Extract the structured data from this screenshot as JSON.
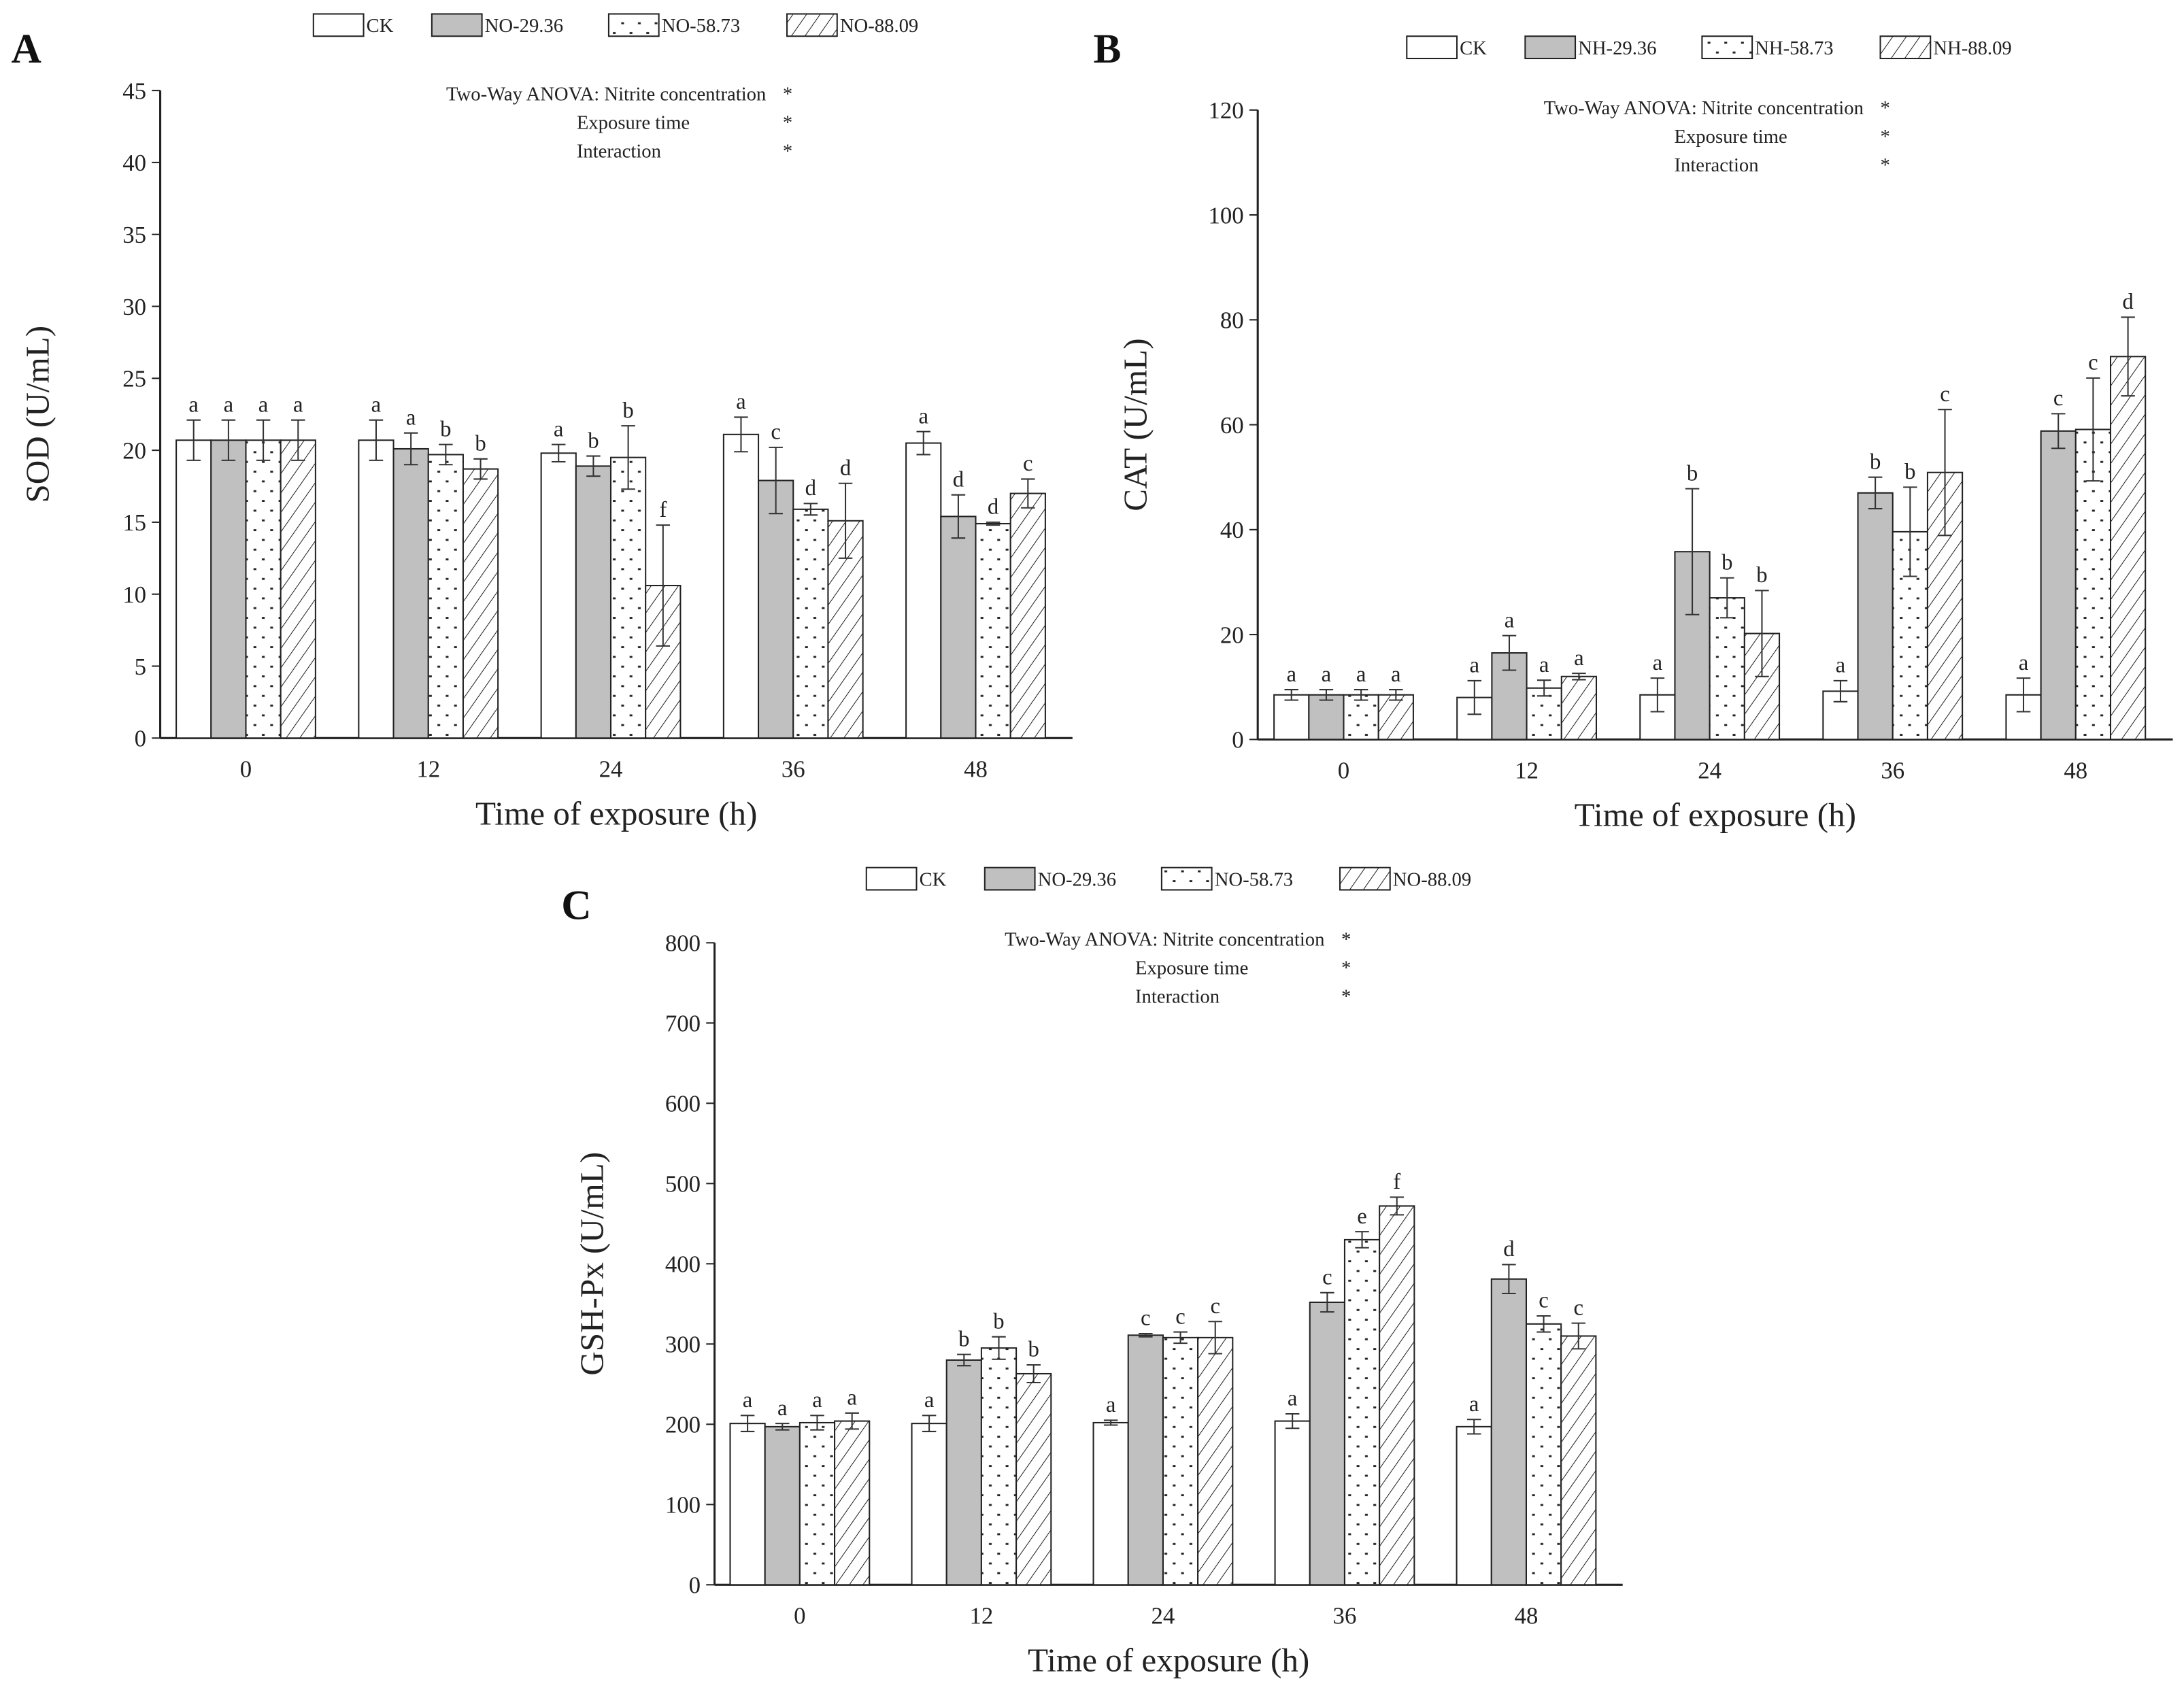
{
  "chart_data": [
    {
      "type": "bar",
      "panel_label": "A",
      "title": "",
      "xlabel": "Time of exposure (h)",
      "ylabel": "SOD (U/mL)",
      "ylim": [
        0,
        45
      ],
      "yticks": [
        0,
        5,
        10,
        15,
        20,
        25,
        30,
        35,
        40,
        45
      ],
      "categories": [
        "0",
        "12",
        "24",
        "36",
        "48"
      ],
      "legend_position": "top",
      "anova": {
        "title": "Two-Way ANOVA:",
        "rows": [
          {
            "label": "Nitrite concentration",
            "mark": "*"
          },
          {
            "label": "Exposure time",
            "mark": "*"
          },
          {
            "label": "Interaction",
            "mark": "*"
          }
        ]
      },
      "series": [
        {
          "name": "CK",
          "pattern": "white",
          "values": [
            20.7,
            20.7,
            19.8,
            21.1,
            20.5
          ],
          "errors": [
            1.4,
            1.4,
            0.6,
            1.2,
            0.8
          ],
          "letters": [
            "a",
            "a",
            "a",
            "a",
            "a"
          ]
        },
        {
          "name": "NO-29.36",
          "pattern": "gray",
          "values": [
            20.7,
            20.1,
            18.9,
            17.9,
            15.4
          ],
          "errors": [
            1.4,
            1.1,
            0.7,
            2.3,
            1.5
          ],
          "letters": [
            "a",
            "a",
            "b",
            "c",
            "d"
          ]
        },
        {
          "name": "NO-58.73",
          "pattern": "dots",
          "values": [
            20.7,
            19.7,
            19.5,
            15.9,
            14.9
          ],
          "errors": [
            1.4,
            0.7,
            2.2,
            0.4,
            0.1
          ],
          "letters": [
            "a",
            "b",
            "b",
            "d",
            "d"
          ]
        },
        {
          "name": "NO-88.09",
          "pattern": "hatch",
          "values": [
            20.7,
            18.7,
            10.6,
            15.1,
            17.0
          ],
          "errors": [
            1.4,
            0.7,
            4.2,
            2.6,
            1.0
          ],
          "letters": [
            "a",
            "b",
            "f",
            "d",
            "c"
          ]
        }
      ]
    },
    {
      "type": "bar",
      "panel_label": "B",
      "title": "",
      "xlabel": "Time of exposure (h)",
      "ylabel": "CAT (U/mL)",
      "ylim": [
        0,
        120
      ],
      "yticks": [
        0,
        20,
        40,
        60,
        80,
        100,
        120
      ],
      "categories": [
        "0",
        "12",
        "24",
        "36",
        "48"
      ],
      "legend_position": "top",
      "anova": {
        "title": "Two-Way ANOVA:",
        "rows": [
          {
            "label": "Nitrite concentration",
            "mark": "*"
          },
          {
            "label": "Exposure time",
            "mark": "*"
          },
          {
            "label": "Interaction",
            "mark": "*"
          }
        ]
      },
      "series": [
        {
          "name": "CK",
          "pattern": "white",
          "values": [
            8.5,
            8.0,
            8.5,
            9.2,
            8.5
          ],
          "errors": [
            1.0,
            3.2,
            3.2,
            2.0,
            3.2
          ],
          "letters": [
            "a",
            "a",
            "a",
            "a",
            "a"
          ]
        },
        {
          "name": "NH-29.36",
          "pattern": "gray",
          "values": [
            8.5,
            16.5,
            35.8,
            47.0,
            58.8
          ],
          "errors": [
            1.0,
            3.3,
            12.0,
            3.0,
            3.3
          ],
          "letters": [
            "a",
            "a",
            "b",
            "b",
            "c"
          ]
        },
        {
          "name": "NH-58.73",
          "pattern": "dots",
          "values": [
            8.5,
            9.8,
            27.0,
            39.6,
            59.1
          ],
          "errors": [
            1.0,
            1.5,
            3.8,
            8.5,
            9.8
          ],
          "letters": [
            "a",
            "a",
            "b",
            "b",
            "c"
          ]
        },
        {
          "name": "NH-88.09",
          "pattern": "hatch",
          "values": [
            8.5,
            12.0,
            20.2,
            50.9,
            73.0
          ],
          "errors": [
            1.0,
            0.6,
            8.2,
            12.0,
            7.5
          ],
          "letters": [
            "a",
            "a",
            "b",
            "c",
            "d"
          ]
        }
      ]
    },
    {
      "type": "bar",
      "panel_label": "C",
      "title": "",
      "xlabel": "Time of exposure (h)",
      "ylabel": "GSH-Px (U/mL)",
      "ylim": [
        0,
        800
      ],
      "yticks": [
        0,
        100,
        200,
        300,
        400,
        500,
        600,
        700,
        800
      ],
      "categories": [
        "0",
        "12",
        "24",
        "36",
        "48"
      ],
      "legend_position": "top",
      "anova": {
        "title": "Two-Way ANOVA:",
        "rows": [
          {
            "label": "Nitrite concentration",
            "mark": "*"
          },
          {
            "label": "Exposure time",
            "mark": "*"
          },
          {
            "label": "Interaction",
            "mark": "*"
          }
        ]
      },
      "series": [
        {
          "name": "CK",
          "pattern": "white",
          "values": [
            201,
            201,
            202,
            204,
            197
          ],
          "errors": [
            10,
            10,
            3,
            9,
            9
          ],
          "letters": [
            "a",
            "a",
            "a",
            "a",
            "a"
          ]
        },
        {
          "name": "NO-29.36",
          "pattern": "gray",
          "values": [
            197,
            280,
            311,
            352,
            381
          ],
          "errors": [
            4,
            7,
            2,
            12,
            18
          ],
          "letters": [
            "a",
            "b",
            "c",
            "c",
            "d"
          ]
        },
        {
          "name": "NO-58.73",
          "pattern": "dots",
          "values": [
            202,
            295,
            308,
            430,
            325
          ],
          "errors": [
            9,
            14,
            7,
            10,
            10
          ],
          "letters": [
            "a",
            "b",
            "c",
            "e",
            "c"
          ]
        },
        {
          "name": "NO-88.09",
          "pattern": "hatch",
          "values": [
            204,
            263,
            308,
            472,
            310
          ],
          "errors": [
            10,
            11,
            20,
            11,
            16
          ],
          "letters": [
            "a",
            "b",
            "c",
            "f",
            "c"
          ]
        }
      ]
    }
  ],
  "colors": {
    "gray": "#c0c0c0",
    "axis": "#222222",
    "white": "#ffffff"
  }
}
